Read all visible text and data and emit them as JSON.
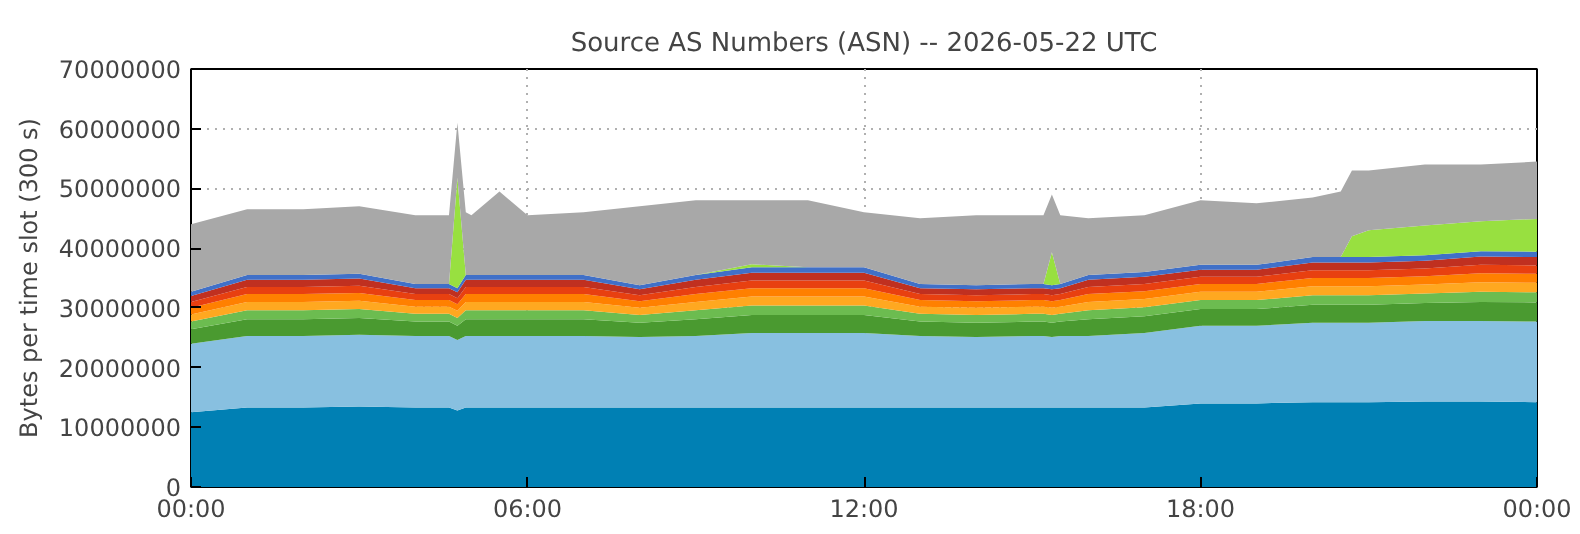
{
  "chart_data": {
    "type": "area",
    "stacked": true,
    "title": "Source AS Numbers (ASN) -- 2026-05-22 UTC",
    "ylabel": "Bytes per time slot (300 s)",
    "x": [
      0,
      1,
      2,
      3,
      4,
      4.6,
      4.75,
      4.9,
      5,
      5.5,
      6,
      7,
      8,
      9,
      10,
      11,
      12,
      13,
      14,
      15,
      15.2,
      15.35,
      15.5,
      16,
      17,
      18,
      19,
      20,
      20.5,
      20.7,
      21,
      22,
      23,
      24
    ],
    "series": [
      {
        "color": "#0080b4",
        "values": [
          12500000,
          13300000,
          13300000,
          13500000,
          13300000,
          13300000,
          12800000,
          13300000,
          13300000,
          13300000,
          13300000,
          13300000,
          13300000,
          13300000,
          13300000,
          13300000,
          13300000,
          13300000,
          13300000,
          13300000,
          13300000,
          13300000,
          13300000,
          13300000,
          13300000,
          14000000,
          14000000,
          14200000,
          14200000,
          14200000,
          14200000,
          14300000,
          14300000,
          14200000
        ]
      },
      {
        "color": "#88c0e0",
        "values": [
          11500000,
          12000000,
          12000000,
          12000000,
          12000000,
          12000000,
          11800000,
          12000000,
          12000000,
          12000000,
          12000000,
          12000000,
          11800000,
          12000000,
          12500000,
          12500000,
          12500000,
          12000000,
          11800000,
          12000000,
          12000000,
          11800000,
          12000000,
          12000000,
          12500000,
          13000000,
          13000000,
          13300000,
          13300000,
          13300000,
          13300000,
          13500000,
          13500000,
          13500000
        ]
      },
      {
        "color": "#4a9a30",
        "values": [
          2400000,
          2800000,
          2800000,
          2800000,
          2400000,
          2400000,
          2400000,
          2800000,
          2800000,
          2800000,
          2800000,
          2800000,
          2400000,
          2800000,
          3000000,
          3000000,
          3000000,
          2400000,
          2400000,
          2400000,
          2400000,
          2400000,
          2400000,
          2800000,
          2800000,
          2800000,
          2800000,
          3000000,
          3000000,
          3000000,
          3000000,
          3000000,
          3200000,
          3200000
        ]
      },
      {
        "color": "#6cbc50",
        "values": [
          1300000,
          1500000,
          1500000,
          1500000,
          1300000,
          1300000,
          1300000,
          1500000,
          1500000,
          1500000,
          1500000,
          1500000,
          1300000,
          1500000,
          1600000,
          1600000,
          1600000,
          1300000,
          1300000,
          1300000,
          1300000,
          1300000,
          1300000,
          1500000,
          1500000,
          1500000,
          1500000,
          1600000,
          1600000,
          1600000,
          1600000,
          1600000,
          1700000,
          1700000
        ]
      },
      {
        "color": "#ffa820",
        "values": [
          1200000,
          1400000,
          1400000,
          1400000,
          1200000,
          1200000,
          1200000,
          1400000,
          1400000,
          1400000,
          1400000,
          1400000,
          1200000,
          1400000,
          1500000,
          1500000,
          1500000,
          1200000,
          1200000,
          1200000,
          1200000,
          1200000,
          1200000,
          1400000,
          1400000,
          1400000,
          1400000,
          1500000,
          1500000,
          1500000,
          1500000,
          1500000,
          1600000,
          1600000
        ]
      },
      {
        "color": "#ff8000",
        "values": [
          1100000,
          1300000,
          1300000,
          1300000,
          1100000,
          1100000,
          1100000,
          1300000,
          1300000,
          1300000,
          1300000,
          1300000,
          1100000,
          1300000,
          1400000,
          1400000,
          1400000,
          1100000,
          1100000,
          1100000,
          1100000,
          1100000,
          1100000,
          1300000,
          1300000,
          1300000,
          1300000,
          1400000,
          1400000,
          1400000,
          1400000,
          1400000,
          1500000,
          1500000
        ]
      },
      {
        "color": "#e84010",
        "values": [
          1000000,
          1200000,
          1200000,
          1200000,
          1000000,
          1000000,
          1000000,
          1200000,
          1200000,
          1200000,
          1200000,
          1200000,
          1000000,
          1200000,
          1300000,
          1300000,
          1300000,
          1000000,
          1000000,
          1000000,
          1000000,
          1000000,
          1000000,
          1200000,
          1200000,
          1200000,
          1200000,
          1300000,
          1300000,
          1300000,
          1300000,
          1300000,
          1400000,
          1400000
        ]
      },
      {
        "color": "#c03020",
        "values": [
          1000000,
          1200000,
          1200000,
          1200000,
          1000000,
          1000000,
          1000000,
          1200000,
          1200000,
          1200000,
          1200000,
          1200000,
          1000000,
          1200000,
          1300000,
          1300000,
          1300000,
          1000000,
          1000000,
          1000000,
          1000000,
          1000000,
          1000000,
          1200000,
          1200000,
          1200000,
          1200000,
          1300000,
          1300000,
          1300000,
          1300000,
          1300000,
          1400000,
          1400000
        ]
      },
      {
        "color": "#4070c8",
        "values": [
          700000,
          800000,
          800000,
          800000,
          700000,
          700000,
          700000,
          800000,
          800000,
          800000,
          800000,
          800000,
          700000,
          800000,
          900000,
          900000,
          900000,
          700000,
          700000,
          700000,
          700000,
          700000,
          700000,
          800000,
          800000,
          800000,
          800000,
          900000,
          900000,
          900000,
          900000,
          900000,
          900000,
          900000
        ]
      },
      {
        "color": "#98e040",
        "values": [
          0,
          0,
          0,
          0,
          0,
          0,
          18500000,
          0,
          0,
          0,
          0,
          0,
          0,
          0,
          500000,
          0,
          0,
          0,
          0,
          0,
          0,
          5500000,
          0,
          0,
          0,
          0,
          0,
          0,
          0,
          3500000,
          4500000,
          5000000,
          5000000,
          5500000
        ]
      },
      {
        "color": "#a8a8a8",
        "values": [
          11300000,
          11000000,
          11000000,
          11300000,
          11500000,
          11500000,
          9200000,
          10500000,
          10000000,
          14000000,
          10000000,
          10500000,
          13200000,
          12500000,
          10700000,
          11200000,
          9200000,
          11000000,
          11700000,
          11500000,
          11500000,
          9700000,
          11500000,
          9500000,
          9500000,
          10800000,
          10300000,
          10000000,
          11000000,
          11000000,
          10000000,
          10200000,
          9500000,
          9600000
        ]
      }
    ],
    "xlim": [
      0,
      24
    ],
    "xticks": [
      {
        "value": 0,
        "label": "00:00"
      },
      {
        "value": 6,
        "label": "06:00"
      },
      {
        "value": 12,
        "label": "12:00"
      },
      {
        "value": 18,
        "label": "18:00"
      },
      {
        "value": 24,
        "label": "00:00"
      }
    ],
    "ylim": [
      0,
      70000000
    ],
    "yticks": [
      0,
      10000000,
      20000000,
      30000000,
      40000000,
      50000000,
      60000000,
      70000000
    ],
    "grid": true
  }
}
